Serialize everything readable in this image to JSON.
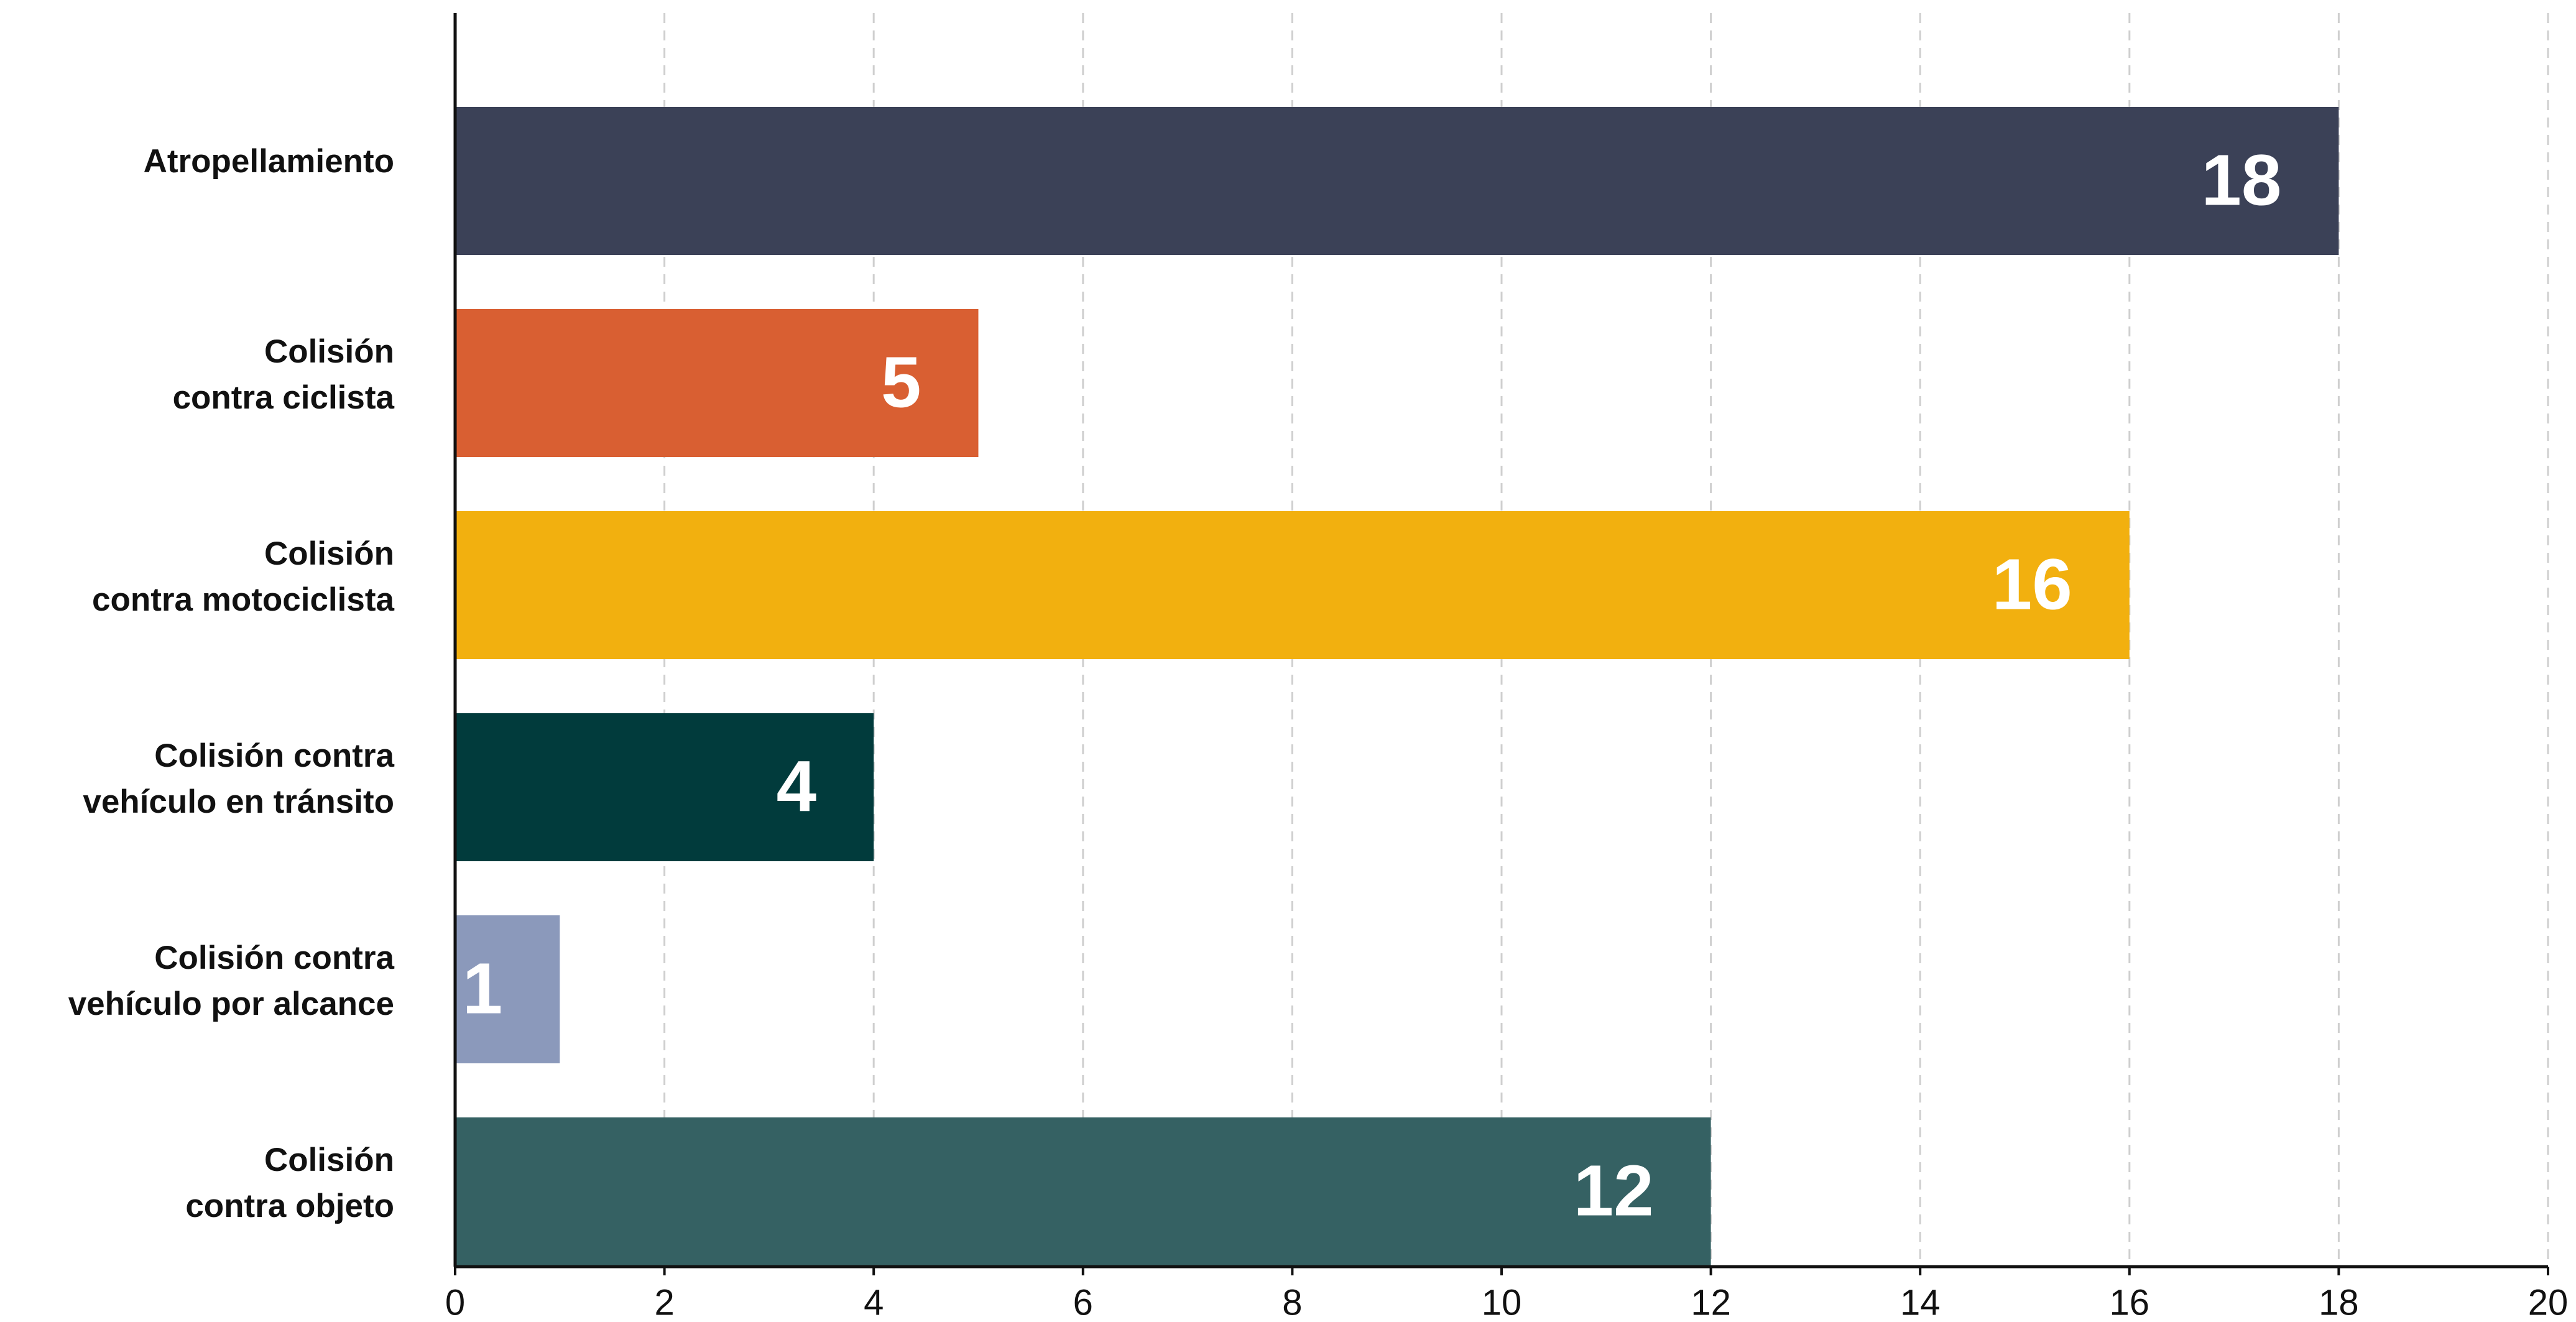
{
  "chart_data": {
    "type": "bar",
    "orientation": "horizontal",
    "categories": [
      [
        "Atropellamiento"
      ],
      [
        "Colisión",
        "contra ciclista"
      ],
      [
        "Colisión",
        "contra motociclista"
      ],
      [
        "Colisión contra",
        "vehículo en tránsito"
      ],
      [
        "Colisión contra",
        "vehículo por alcance"
      ],
      [
        "Colisión",
        "contra objeto"
      ]
    ],
    "values": [
      18,
      5,
      16,
      4,
      1,
      12
    ],
    "colors": [
      "#3b4157",
      "#d95f32",
      "#f2b00f",
      "#013b3c",
      "#8b99bb",
      "#356163"
    ],
    "xlim": [
      0,
      20
    ],
    "xticks": [
      0,
      2,
      4,
      6,
      8,
      10,
      12,
      14,
      16,
      18,
      20
    ],
    "grid": true
  }
}
